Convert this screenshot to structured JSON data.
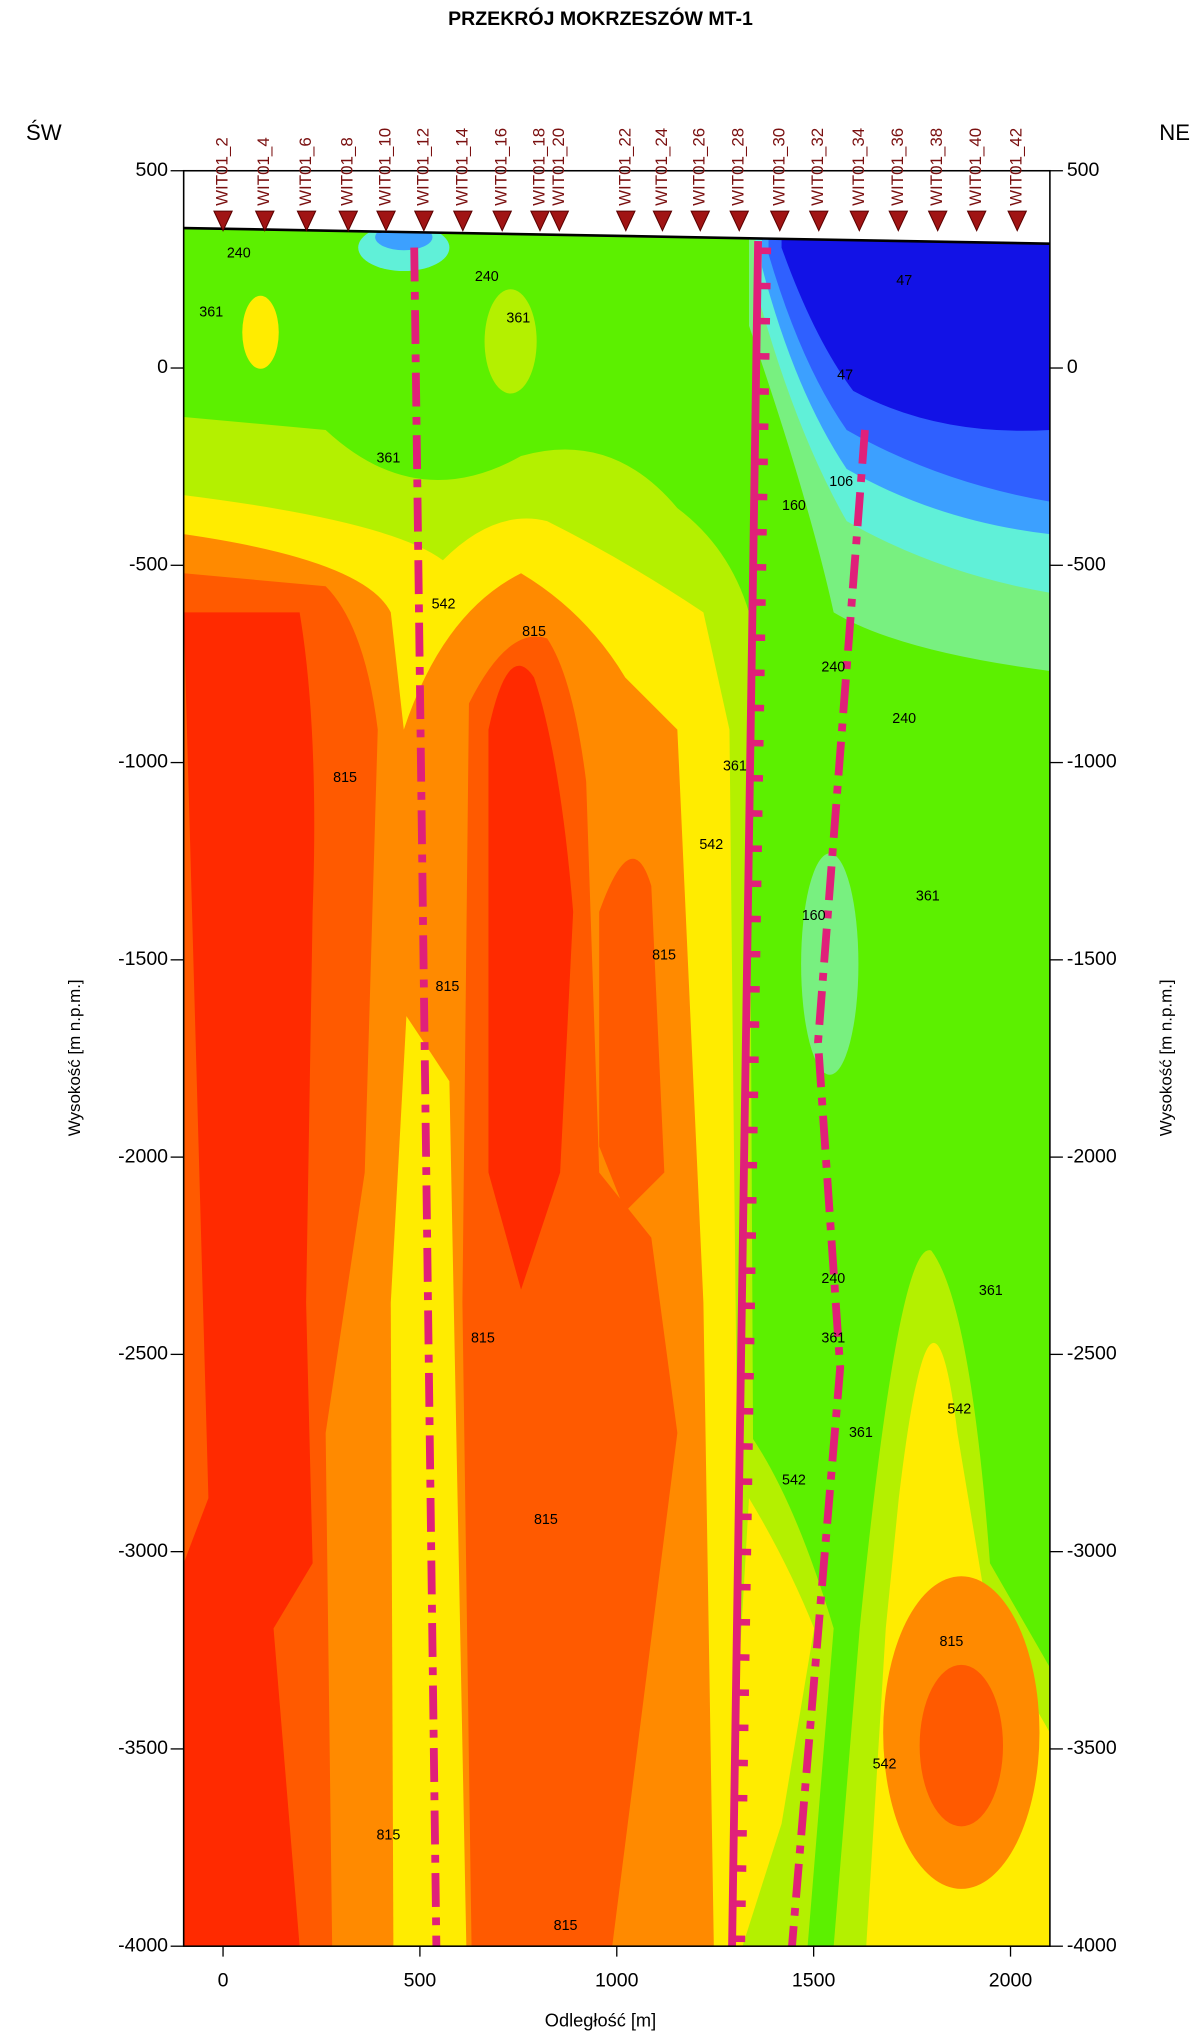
{
  "chart_data": {
    "type": "contour",
    "title": "PRZEKRÓJ MOKRZESZÓW MT-1",
    "left_label": "ŚW",
    "right_label": "NE",
    "x_label": "Odległość [m]",
    "y_label": "Wysokość [m n.p.m.]",
    "xlim": [
      -100,
      2100
    ],
    "ylim": [
      -4000,
      500
    ],
    "xticks": [
      0,
      500,
      1000,
      1500,
      2000
    ],
    "yticks": [
      500,
      0,
      -500,
      -1000,
      -1500,
      -2000,
      -2500,
      -3000,
      -3500,
      -4000
    ],
    "stations": [
      {
        "name": "WIT01_2",
        "x": 0
      },
      {
        "name": "WIT01_4",
        "x": 106
      },
      {
        "name": "WIT01_6",
        "x": 212
      },
      {
        "name": "WIT01_8",
        "x": 318
      },
      {
        "name": "WIT01_10",
        "x": 414
      },
      {
        "name": "WIT01_12",
        "x": 510
      },
      {
        "name": "WIT01_14",
        "x": 609
      },
      {
        "name": "WIT01_16",
        "x": 709
      },
      {
        "name": "WIT01_18",
        "x": 805
      },
      {
        "name": "WIT01_20",
        "x": 854
      },
      {
        "name": "WIT01_22",
        "x": 1023
      },
      {
        "name": "WIT01_24",
        "x": 1116
      },
      {
        "name": "WIT01_26",
        "x": 1212
      },
      {
        "name": "WIT01_28",
        "x": 1311
      },
      {
        "name": "WIT01_30",
        "x": 1414
      },
      {
        "name": "WIT01_32",
        "x": 1513
      },
      {
        "name": "WIT01_34",
        "x": 1616
      },
      {
        "name": "WIT01_36",
        "x": 1715
      },
      {
        "name": "WIT01_38",
        "x": 1815
      },
      {
        "name": "WIT01_40",
        "x": 1914
      },
      {
        "name": "WIT01_42",
        "x": 2017
      }
    ],
    "contour_labels": [
      {
        "level": 240,
        "x": 40,
        "y": 290
      },
      {
        "level": 361,
        "x": -30,
        "y": 140
      },
      {
        "level": 240,
        "x": 670,
        "y": 230
      },
      {
        "level": 361,
        "x": 750,
        "y": 125
      },
      {
        "level": 361,
        "x": 420,
        "y": -230
      },
      {
        "level": 542,
        "x": 560,
        "y": -600
      },
      {
        "level": 815,
        "x": 790,
        "y": -670
      },
      {
        "level": 815,
        "x": 310,
        "y": -1040
      },
      {
        "level": 815,
        "x": 570,
        "y": -1570
      },
      {
        "level": 815,
        "x": 660,
        "y": -2460
      },
      {
        "level": 815,
        "x": 820,
        "y": -2920
      },
      {
        "level": 815,
        "x": 420,
        "y": -3720
      },
      {
        "level": 815,
        "x": 870,
        "y": -3950
      },
      {
        "level": 815,
        "x": 1120,
        "y": -1490
      },
      {
        "level": 542,
        "x": 1240,
        "y": -1210
      },
      {
        "level": 361,
        "x": 1300,
        "y": -1010
      },
      {
        "level": 47,
        "x": 1730,
        "y": 220
      },
      {
        "level": 47,
        "x": 1580,
        "y": -20
      },
      {
        "level": 106,
        "x": 1570,
        "y": -290
      },
      {
        "level": 160,
        "x": 1450,
        "y": -350
      },
      {
        "level": 240,
        "x": 1550,
        "y": -760
      },
      {
        "level": 240,
        "x": 1730,
        "y": -890
      },
      {
        "level": 160,
        "x": 1500,
        "y": -1390
      },
      {
        "level": 361,
        "x": 1790,
        "y": -1340
      },
      {
        "level": 240,
        "x": 1550,
        "y": -2310
      },
      {
        "level": 361,
        "x": 1550,
        "y": -2460
      },
      {
        "level": 542,
        "x": 1450,
        "y": -2820
      },
      {
        "level": 361,
        "x": 1620,
        "y": -2700
      },
      {
        "level": 361,
        "x": 1950,
        "y": -2340
      },
      {
        "level": 542,
        "x": 1870,
        "y": -2640
      },
      {
        "level": 815,
        "x": 1850,
        "y": -3230
      },
      {
        "level": 542,
        "x": 1680,
        "y": -3540
      }
    ]
  }
}
